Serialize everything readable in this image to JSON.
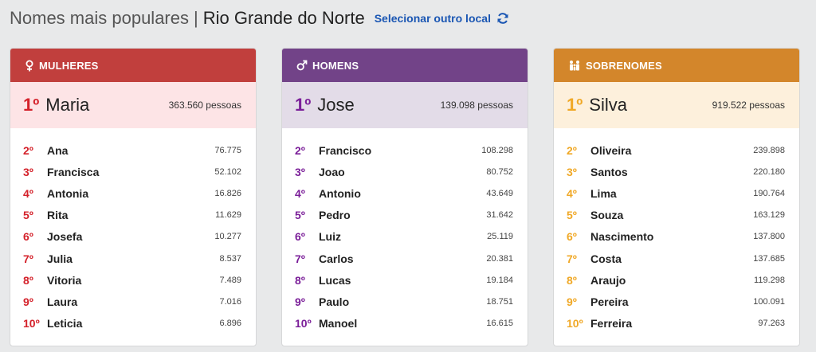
{
  "header": {
    "title": "Nomes mais populares",
    "separator": "|",
    "region": "Rio Grande do Norte",
    "change_link": "Selecionar outro local",
    "refresh_icon": "refresh-icon"
  },
  "colors": {
    "women": "#c13f3d",
    "men": "#724388",
    "surnames": "#d3862b",
    "link": "#1a56b3"
  },
  "women": {
    "heading": "MULHERES",
    "icon": "female-icon",
    "top": {
      "rank": "1º",
      "name": "Maria",
      "count": "363.560 pessoas"
    },
    "items": [
      {
        "rank": "2º",
        "name": "Ana",
        "value": "76.775"
      },
      {
        "rank": "3º",
        "name": "Francisca",
        "value": "52.102"
      },
      {
        "rank": "4º",
        "name": "Antonia",
        "value": "16.826"
      },
      {
        "rank": "5º",
        "name": "Rita",
        "value": "11.629"
      },
      {
        "rank": "6º",
        "name": "Josefa",
        "value": "10.277"
      },
      {
        "rank": "7º",
        "name": "Julia",
        "value": "8.537"
      },
      {
        "rank": "8º",
        "name": "Vitoria",
        "value": "7.489"
      },
      {
        "rank": "9º",
        "name": "Laura",
        "value": "7.016"
      },
      {
        "rank": "10º",
        "name": "Leticia",
        "value": "6.896"
      }
    ]
  },
  "men": {
    "heading": "HOMENS",
    "icon": "male-icon",
    "top": {
      "rank": "1º",
      "name": "Jose",
      "count": "139.098 pessoas"
    },
    "items": [
      {
        "rank": "2º",
        "name": "Francisco",
        "value": "108.298"
      },
      {
        "rank": "3º",
        "name": "Joao",
        "value": "80.752"
      },
      {
        "rank": "4º",
        "name": "Antonio",
        "value": "43.649"
      },
      {
        "rank": "5º",
        "name": "Pedro",
        "value": "31.642"
      },
      {
        "rank": "6º",
        "name": "Luiz",
        "value": "25.119"
      },
      {
        "rank": "7º",
        "name": "Carlos",
        "value": "20.381"
      },
      {
        "rank": "8º",
        "name": "Lucas",
        "value": "19.184"
      },
      {
        "rank": "9º",
        "name": "Paulo",
        "value": "18.751"
      },
      {
        "rank": "10º",
        "name": "Manoel",
        "value": "16.615"
      }
    ]
  },
  "surnames": {
    "heading": "SOBRENOMES",
    "icon": "family-icon",
    "top": {
      "rank": "1º",
      "name": "Silva",
      "count": "919.522 pessoas"
    },
    "items": [
      {
        "rank": "2º",
        "name": "Oliveira",
        "value": "239.898"
      },
      {
        "rank": "3º",
        "name": "Santos",
        "value": "220.180"
      },
      {
        "rank": "4º",
        "name": "Lima",
        "value": "190.764"
      },
      {
        "rank": "5º",
        "name": "Souza",
        "value": "163.129"
      },
      {
        "rank": "6º",
        "name": "Nascimento",
        "value": "137.800"
      },
      {
        "rank": "7º",
        "name": "Costa",
        "value": "137.685"
      },
      {
        "rank": "8º",
        "name": "Araujo",
        "value": "119.298"
      },
      {
        "rank": "9º",
        "name": "Pereira",
        "value": "100.091"
      },
      {
        "rank": "10º",
        "name": "Ferreira",
        "value": "97.263"
      }
    ]
  }
}
